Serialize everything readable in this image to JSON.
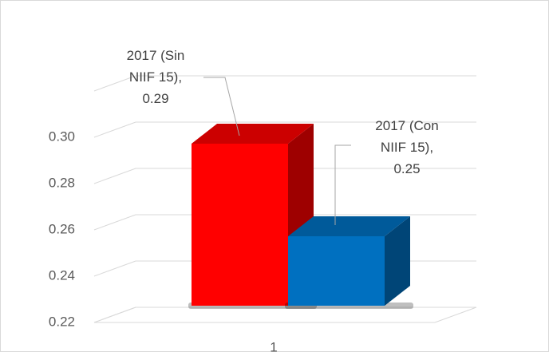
{
  "chart_data": {
    "type": "bar3d",
    "categories": [
      "1"
    ],
    "series": [
      {
        "name": "2017 (Sin NIIF 15)",
        "color": "#ff0000",
        "values": [
          0.29
        ]
      },
      {
        "name": "2017 (Con NIIF 15)",
        "color": "#0070c0",
        "values": [
          0.25
        ]
      }
    ],
    "ylim": [
      0.22,
      0.32
    ],
    "yticks": [
      {
        "value": 0.22,
        "label": "0.22"
      },
      {
        "value": 0.24,
        "label": "0.24"
      },
      {
        "value": 0.26,
        "label": "0.26"
      },
      {
        "value": 0.28,
        "label": "0.28"
      },
      {
        "value": 0.3,
        "label": "0.30"
      }
    ],
    "grid": true
  }
}
